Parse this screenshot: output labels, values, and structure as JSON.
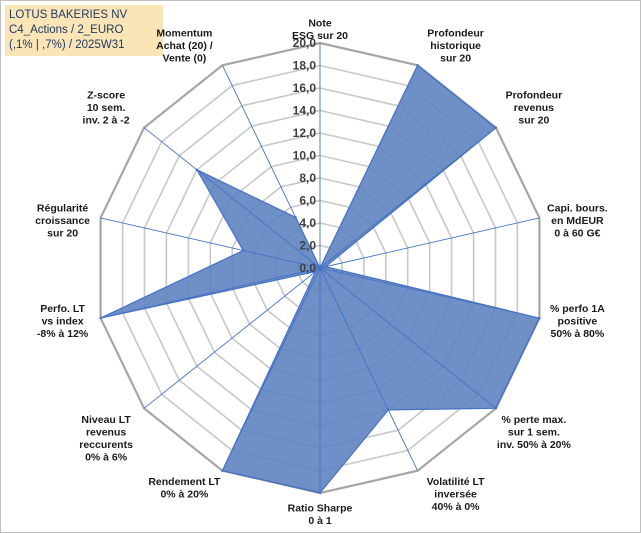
{
  "header": {
    "line1": "LOTUS BAKERIES NV",
    "line2": "C4_Actions / 2_EURO",
    "line3": "(,1% | ,7%) / 2025W31"
  },
  "chart_data": {
    "type": "radar",
    "rmin": 0,
    "rmax": 20,
    "tick_step": 2,
    "tick_labels": [
      "0,0",
      "2,0",
      "4,0",
      "6,0",
      "8,0",
      "10,0",
      "12,0",
      "14,0",
      "16,0",
      "18,0",
      "20,0"
    ],
    "grid": true,
    "colors": {
      "fill": "#5b7fbf",
      "stroke": "#4472c4",
      "grid": "#c8c8c8",
      "spoke": "#4472c4"
    },
    "axes": [
      {
        "label": [
          "Note",
          "ESG sur 20"
        ],
        "value": 0
      },
      {
        "label": [
          "Profondeur",
          "historique",
          "sur 20"
        ],
        "value": 20
      },
      {
        "label": [
          "Profondeur",
          "revenus",
          "sur 20"
        ],
        "value": 20
      },
      {
        "label": [
          "Capi. bours.",
          "en MdEUR",
          "0 à 60 G€"
        ],
        "value": 0.5
      },
      {
        "label": [
          "% perfo 1A",
          "positive",
          "50% à 80%"
        ],
        "value": 20
      },
      {
        "label": [
          "% perte max.",
          "sur 1 sem.",
          "inv. 50% à 20%"
        ],
        "value": 20
      },
      {
        "label": [
          "Volatilité LT",
          "inversée",
          "40% à 0%"
        ],
        "value": 14
      },
      {
        "label": [
          "Ratio Sharpe",
          "0 à 1"
        ],
        "value": 20
      },
      {
        "label": [
          "Rendement LT",
          "0% à 20%"
        ],
        "value": 20
      },
      {
        "label": [
          "Niveau LT",
          "revenus",
          "reccurents",
          "0% à 6%"
        ],
        "value": 0.5
      },
      {
        "label": [
          "Perfo. LT",
          "vs index",
          "-8% à 12%"
        ],
        "value": 20
      },
      {
        "label": [
          "Régularité",
          "croissance",
          "sur 20"
        ],
        "value": 7
      },
      {
        "label": [
          "Z-score",
          "10 sem.",
          "inv. 2 à -2"
        ],
        "value": 14
      },
      {
        "label": [
          "Momentum",
          "Achat (20) /",
          "Vente (0)"
        ],
        "value": 5
      }
    ]
  }
}
